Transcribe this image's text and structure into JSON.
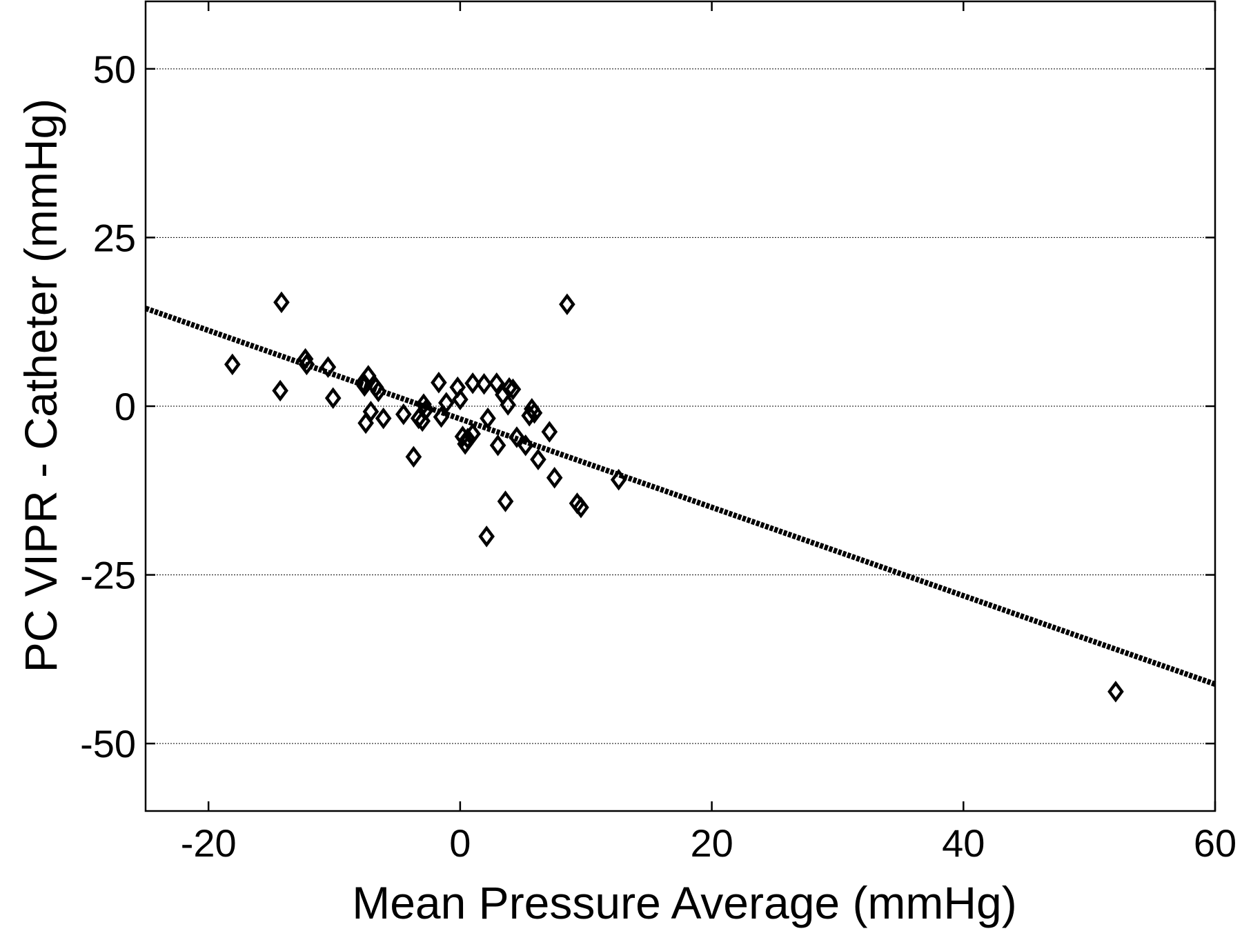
{
  "chart_data": {
    "type": "scatter",
    "xlabel": "Mean Pressure Average (mmHg)",
    "ylabel": "PC VIPR - Catheter (mmHg)",
    "xlim": [
      -25,
      60
    ],
    "ylim": [
      -60,
      60
    ],
    "xticks": [
      -20,
      0,
      20,
      40,
      60
    ],
    "yticks": [
      -50,
      -25,
      0,
      25,
      50
    ],
    "x_tick_labels": [
      "-20",
      "0",
      "20",
      "40",
      "60"
    ],
    "y_tick_labels": [
      "-50",
      "-25",
      "0",
      "25",
      "50"
    ],
    "grid": "horizontal dotted",
    "marker": "open diamond",
    "series": [
      {
        "x": [
          -18.1,
          -14.2,
          -14.3,
          -12.3,
          -12.2,
          -10.5,
          -10.1,
          -7.7,
          -7.5,
          -7.3,
          -7.6,
          -7.1,
          -6.7,
          -6.5,
          -6.1,
          -4.5,
          -3.7,
          -3.3,
          -3.0,
          -2.9,
          -2.7,
          -1.7,
          -1.5,
          -1.1,
          -0.2,
          0.0,
          0.2,
          0.4,
          0.6,
          1.0,
          1.0,
          1.9,
          2.1,
          2.2,
          2.9,
          3.0,
          3.4,
          3.6,
          3.8,
          3.9,
          4.2,
          4.5,
          5.2,
          5.5,
          5.7,
          5.9,
          6.2,
          7.1,
          7.5,
          8.5,
          9.3,
          9.6,
          12.6,
          52.1
        ],
        "y": [
          6.2,
          15.4,
          2.3,
          7.0,
          6.2,
          5.8,
          1.2,
          3.5,
          -2.5,
          4.5,
          3.0,
          -0.8,
          2.8,
          2.2,
          -1.8,
          -1.2,
          -7.5,
          -1.8,
          -2.2,
          0.3,
          -0.5,
          3.5,
          -1.6,
          0.5,
          2.8,
          1.0,
          -4.5,
          -5.6,
          -4.8,
          -4.1,
          3.4,
          3.3,
          -19.3,
          -1.8,
          3.4,
          -5.8,
          1.7,
          -14.1,
          0.2,
          2.7,
          2.5,
          -4.6,
          -5.8,
          -1.4,
          -0.4,
          -1.0,
          -7.9,
          -3.8,
          -10.6,
          15.1,
          -14.4,
          -15.0,
          -10.9,
          -42.3
        ]
      }
    ],
    "fit_line": {
      "x": [
        -25,
        60
      ],
      "y": [
        14.5,
        -41.2
      ]
    }
  }
}
